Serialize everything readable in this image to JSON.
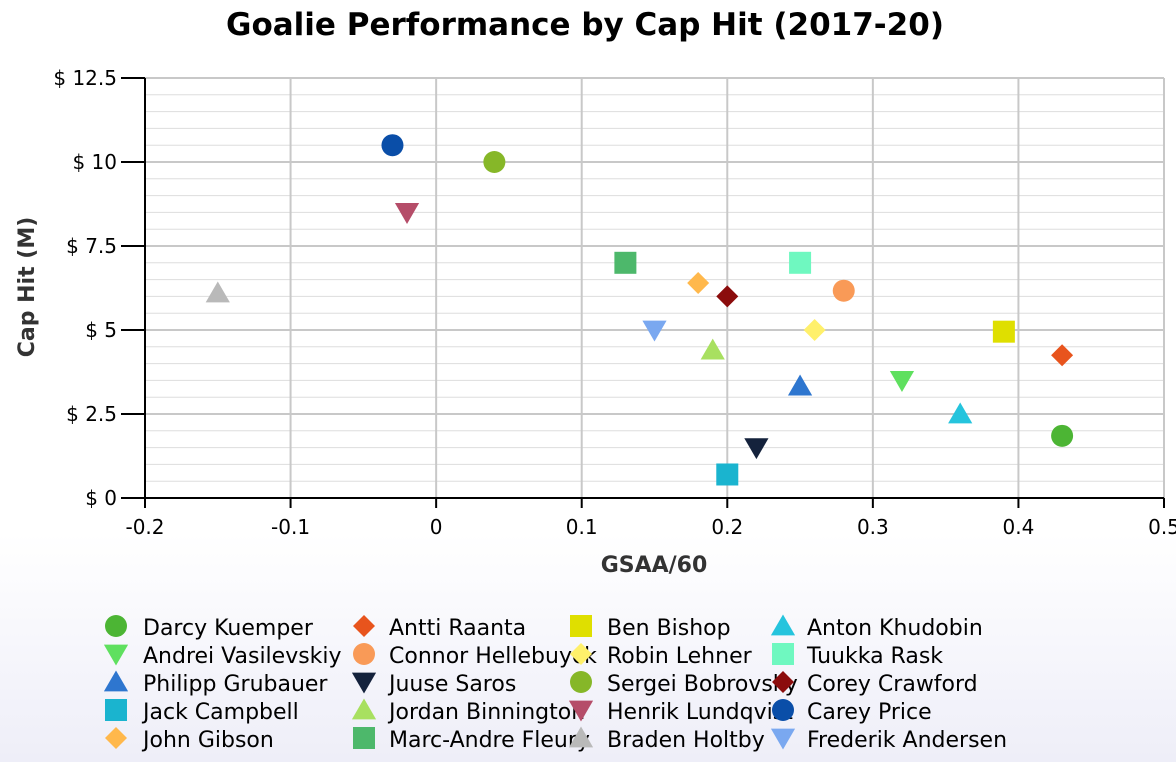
{
  "chart_data": {
    "type": "scatter",
    "title": "Goalie Performance by Cap Hit (2017-20)",
    "xlabel": "GSAA/60",
    "ylabel": "Cap Hit (M)",
    "xlim": [
      -0.2,
      0.5
    ],
    "ylim": [
      0,
      12.5
    ],
    "x_ticks": [
      -0.2,
      -0.1,
      0,
      0.1,
      0.2,
      0.3,
      0.4,
      0.5
    ],
    "x_tick_labels": [
      "-0.2",
      "-0.1",
      "0",
      "0.1",
      "0.2",
      "0.3",
      "0.4",
      "0.5"
    ],
    "y_ticks": [
      0,
      2.5,
      5,
      7.5,
      10,
      12.5
    ],
    "y_tick_labels": [
      "$ 0",
      "$ 2.5",
      "$ 5",
      "$ 7.5",
      "$ 10",
      "$ 12.5"
    ],
    "y_minor_step": 0.5,
    "grid": true,
    "legend_position": "bottom",
    "series": [
      {
        "name": "Darcy Kuemper",
        "marker": "circle",
        "color": "#4cb534",
        "x": 0.43,
        "y": 1.85
      },
      {
        "name": "Antti Raanta",
        "marker": "diamond",
        "color": "#e8541d",
        "x": 0.43,
        "y": 4.25
      },
      {
        "name": "Ben Bishop",
        "marker": "square",
        "color": "#dfdf00",
        "x": 0.39,
        "y": 4.95
      },
      {
        "name": "Anton Khudobin",
        "marker": "triangle",
        "color": "#25c4dd",
        "x": 0.36,
        "y": 2.5
      },
      {
        "name": "Andrei Vasilevskiy",
        "marker": "triangle-down",
        "color": "#5fe05f",
        "x": 0.32,
        "y": 3.5
      },
      {
        "name": "Connor Hellebuyck",
        "marker": "circle",
        "color": "#f99a57",
        "x": 0.28,
        "y": 6.17
      },
      {
        "name": "Robin Lehner",
        "marker": "diamond",
        "color": "#fff06b",
        "x": 0.26,
        "y": 5.0
      },
      {
        "name": "Tuukka Rask",
        "marker": "square",
        "color": "#6ff8c0",
        "x": 0.25,
        "y": 7.0
      },
      {
        "name": "Philipp Grubauer",
        "marker": "triangle",
        "color": "#2e76cf",
        "x": 0.25,
        "y": 3.33
      },
      {
        "name": "Juuse Saros",
        "marker": "triangle-down",
        "color": "#14223c",
        "x": 0.22,
        "y": 1.5
      },
      {
        "name": "Sergei Bobrovsky",
        "marker": "circle",
        "color": "#86b728",
        "x": 0.04,
        "y": 10.0
      },
      {
        "name": "Corey Crawford",
        "marker": "diamond",
        "color": "#8b0c0c",
        "x": 0.2,
        "y": 6.0
      },
      {
        "name": "Jack Campbell",
        "marker": "square",
        "color": "#1ab4cf",
        "x": 0.2,
        "y": 0.7
      },
      {
        "name": "Jordan Binnington",
        "marker": "triangle",
        "color": "#a8e060",
        "x": 0.19,
        "y": 4.4
      },
      {
        "name": "Henrik Lundqvist",
        "marker": "triangle-down",
        "color": "#b54d69",
        "x": -0.02,
        "y": 8.5
      },
      {
        "name": "Carey Price",
        "marker": "circle",
        "color": "#0a4ea8",
        "x": -0.03,
        "y": 10.5
      },
      {
        "name": "John Gibson",
        "marker": "diamond",
        "color": "#ffb84c",
        "x": 0.18,
        "y": 6.4
      },
      {
        "name": "Marc-Andre Fleury",
        "marker": "square",
        "color": "#4db86b",
        "x": 0.13,
        "y": 7.0
      },
      {
        "name": "Braden Holtby",
        "marker": "triangle",
        "color": "#b9b9b9",
        "x": -0.15,
        "y": 6.1
      },
      {
        "name": "Frederik Andersen",
        "marker": "triangle-down",
        "color": "#7aa8f0",
        "x": 0.15,
        "y": 5.0
      }
    ]
  }
}
